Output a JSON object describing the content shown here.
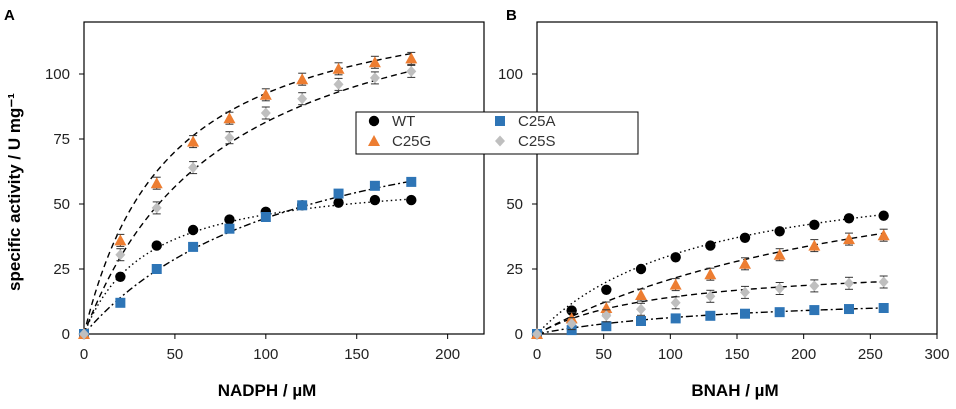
{
  "colors": {
    "WT": "#000000",
    "C25A": "#2e75b6",
    "C25G": "#ed7d31",
    "C25S": "#bfbfbf",
    "fit": "#000000"
  },
  "legend": {
    "entries": [
      "WT",
      "C25A",
      "C25G",
      "C25S"
    ]
  },
  "chart_data": [
    {
      "type": "scatter",
      "panel": "A",
      "xlabel": "NADPH / µM",
      "ylabel": "specific activity / U mg⁻¹",
      "xlim": [
        0,
        220
      ],
      "ylim": [
        0,
        120
      ],
      "xticks": [
        0,
        50,
        100,
        150,
        200
      ],
      "yticks": [
        0,
        25,
        50,
        75,
        100
      ],
      "series": [
        {
          "name": "WT",
          "marker": "circle",
          "fit": "dotted",
          "vmax": 62.0,
          "km": 35.0,
          "x": [
            0,
            20,
            40,
            60,
            80,
            100,
            120,
            140,
            160,
            180
          ],
          "y": [
            0,
            22,
            34,
            40,
            44,
            47,
            49.5,
            50.5,
            51.5,
            51.5
          ]
        },
        {
          "name": "C25A",
          "marker": "square",
          "fit": "dash-dot",
          "vmax": 98.0,
          "km": 120.0,
          "x": [
            0,
            20,
            40,
            60,
            80,
            100,
            120,
            140,
            160,
            180
          ],
          "y": [
            0,
            12,
            25,
            33.5,
            40.5,
            45,
            49.5,
            54,
            57,
            58.5
          ]
        },
        {
          "name": "C25G",
          "marker": "triangle",
          "fit": "dashed",
          "vmax": 136.0,
          "km": 47.0,
          "x": [
            0,
            20,
            40,
            60,
            80,
            100,
            120,
            140,
            160,
            180
          ],
          "y": [
            0,
            36,
            58,
            74,
            83,
            92,
            98,
            102,
            104.5,
            106
          ]
        },
        {
          "name": "C25S",
          "marker": "diamond",
          "fit": "dashed",
          "vmax": 145.0,
          "km": 78.0,
          "x": [
            0,
            20,
            40,
            60,
            80,
            100,
            120,
            140,
            160,
            180
          ],
          "y": [
            0,
            30.5,
            48.5,
            64,
            75.5,
            85,
            90.5,
            96,
            98.5,
            101
          ]
        }
      ]
    },
    {
      "type": "scatter",
      "panel": "B",
      "xlabel": "BNAH / µM",
      "ylabel": "",
      "xlim": [
        0,
        300
      ],
      "ylim": [
        0,
        120
      ],
      "xticks": [
        0,
        50,
        100,
        150,
        200,
        250,
        300
      ],
      "yticks": [
        0,
        25,
        50,
        75,
        100
      ],
      "series": [
        {
          "name": "WT",
          "marker": "circle",
          "fit": "dotted",
          "vmax": 68.0,
          "km": 125.0,
          "x": [
            0,
            26,
            52,
            78,
            104,
            130,
            156,
            182,
            208,
            234,
            260
          ],
          "y": [
            0,
            9,
            17,
            25,
            29.5,
            34,
            37,
            39.5,
            42,
            44.5,
            45.5
          ]
        },
        {
          "name": "C25A",
          "marker": "square",
          "fit": "dash-dot",
          "vmax": 16.0,
          "km": 155.0,
          "x": [
            0,
            26,
            52,
            78,
            104,
            130,
            156,
            182,
            208,
            234,
            260
          ],
          "y": [
            0,
            1.5,
            3,
            5,
            6,
            7,
            7.8,
            8.4,
            9.2,
            9.6,
            10
          ]
        },
        {
          "name": "C25G",
          "marker": "triangle",
          "fit": "dashed",
          "vmax": 82.0,
          "km": 290.0,
          "x": [
            0,
            26,
            52,
            78,
            104,
            130,
            156,
            182,
            208,
            234,
            260
          ],
          "y": [
            0,
            6,
            10,
            15,
            19,
            23,
            27,
            30.5,
            34,
            36.5,
            38
          ]
        },
        {
          "name": "C25S",
          "marker": "diamond",
          "fit": "dashed",
          "vmax": 27.5,
          "km": 95.0,
          "x": [
            0,
            26,
            52,
            78,
            104,
            130,
            156,
            182,
            208,
            234,
            260
          ],
          "y": [
            0,
            4,
            7,
            9.5,
            12,
            14.5,
            16,
            17.5,
            18.5,
            19.5,
            20
          ]
        }
      ]
    }
  ]
}
